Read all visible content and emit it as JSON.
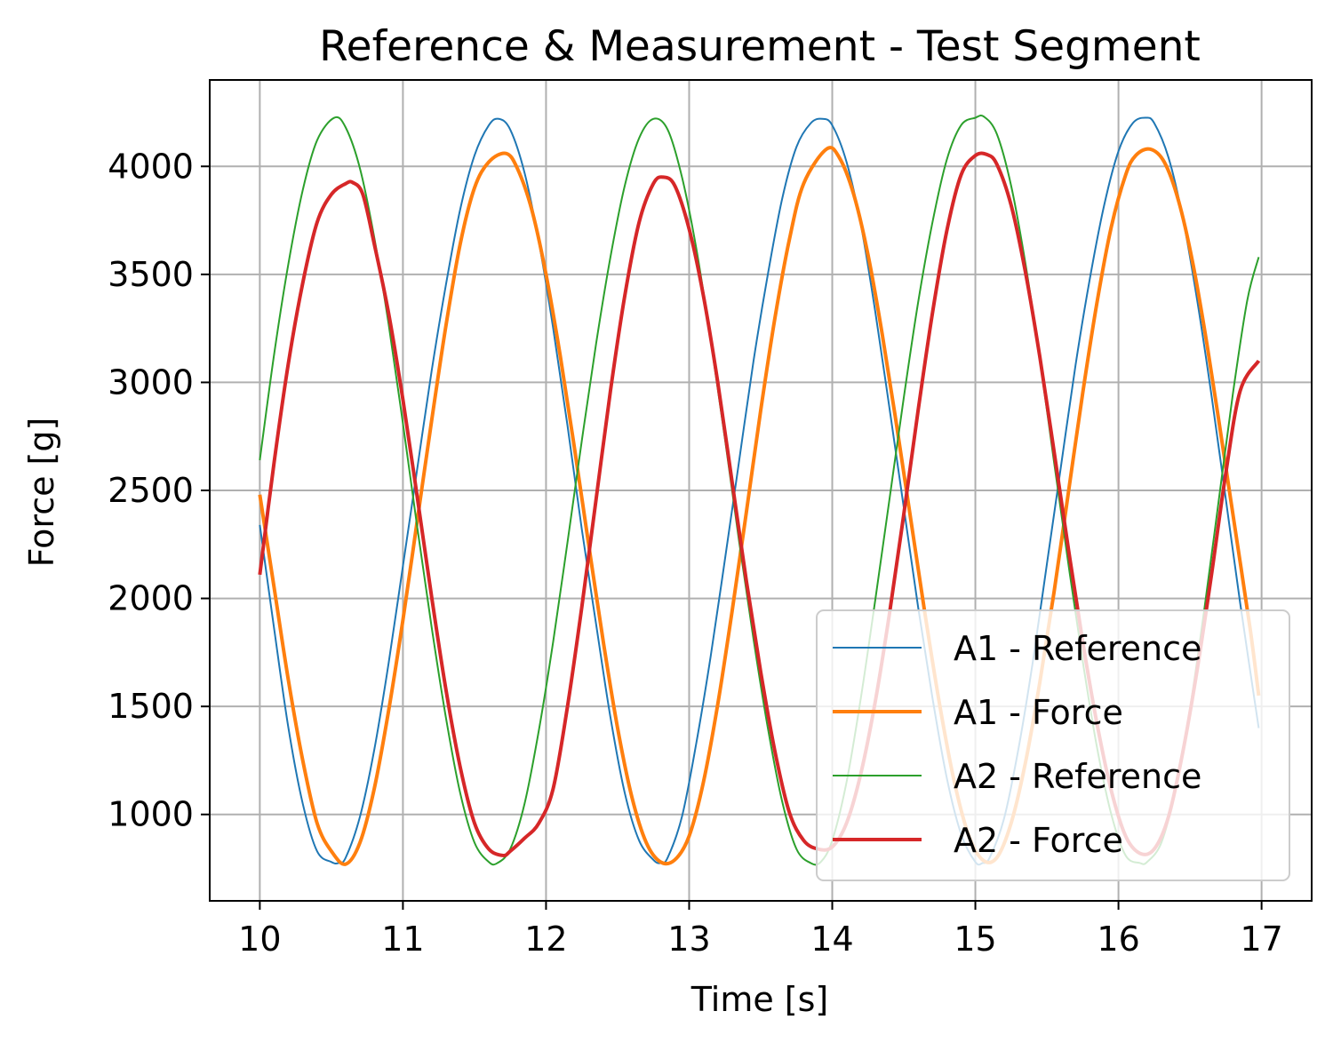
{
  "chart_data": {
    "type": "line",
    "title": "Reference & Measurement - Test Segment",
    "xlabel": "Time [s]",
    "ylabel": "Force [g]",
    "xlim": [
      9.65,
      17.35
    ],
    "ylim": [
      600,
      4400
    ],
    "xticks": [
      10,
      11,
      12,
      13,
      14,
      15,
      16,
      17
    ],
    "yticks": [
      1000,
      1500,
      2000,
      2500,
      3000,
      3500,
      4000
    ],
    "x_tick_labels": [
      "10",
      "11",
      "12",
      "13",
      "14",
      "15",
      "16",
      "17"
    ],
    "y_tick_labels": [
      "1000",
      "1500",
      "2000",
      "2500",
      "3000",
      "3500",
      "4000"
    ],
    "grid": true,
    "legend_position": "lower-right",
    "series": [
      {
        "name": "A1 - Reference",
        "color": "#1f77b4",
        "style": "thin",
        "x": [
          10.0,
          10.1,
          10.2,
          10.3,
          10.4,
          10.5,
          10.55,
          10.6,
          10.7,
          10.8,
          10.9,
          11.0,
          11.1,
          11.2,
          11.3,
          11.4,
          11.5,
          11.6,
          11.67,
          11.75,
          11.85,
          11.95,
          12.05,
          12.15,
          12.25,
          12.35,
          12.45,
          12.55,
          12.65,
          12.75,
          12.8,
          12.85,
          12.95,
          13.05,
          13.15,
          13.25,
          13.35,
          13.45,
          13.55,
          13.65,
          13.75,
          13.85,
          13.93,
          14.0,
          14.1,
          14.2,
          14.3,
          14.4,
          14.5,
          14.6,
          14.7,
          14.8,
          14.9,
          15.0,
          15.05,
          15.1,
          15.2,
          15.3,
          15.4,
          15.5,
          15.6,
          15.7,
          15.8,
          15.9,
          16.0,
          16.1,
          16.19,
          16.25,
          16.35,
          16.45,
          16.55,
          16.65,
          16.75,
          16.85,
          16.98
        ],
        "values": [
          2340,
          1860,
          1400,
          1050,
          830,
          780,
          775,
          800,
          990,
          1300,
          1700,
          2150,
          2600,
          3050,
          3450,
          3800,
          4050,
          4190,
          4220,
          4170,
          3970,
          3650,
          3250,
          2800,
          2320,
          1880,
          1450,
          1100,
          880,
          790,
          775,
          800,
          990,
          1330,
          1730,
          2180,
          2640,
          3100,
          3500,
          3850,
          4090,
          4200,
          4220,
          4190,
          4020,
          3730,
          3330,
          2880,
          2420,
          1960,
          1540,
          1170,
          910,
          780,
          775,
          800,
          980,
          1300,
          1700,
          2160,
          2620,
          3080,
          3480,
          3820,
          4070,
          4200,
          4225,
          4200,
          4040,
          3760,
          3380,
          2940,
          2460,
          1980,
          1400
        ]
      },
      {
        "name": "A1 - Force",
        "color": "#ff7f0e",
        "style": "thick",
        "x": [
          10.0,
          10.1,
          10.2,
          10.3,
          10.4,
          10.5,
          10.6,
          10.7,
          10.8,
          10.9,
          11.0,
          11.1,
          11.2,
          11.3,
          11.4,
          11.5,
          11.6,
          11.72,
          11.8,
          11.9,
          12.0,
          12.1,
          12.2,
          12.3,
          12.4,
          12.5,
          12.6,
          12.7,
          12.8,
          12.9,
          13.0,
          13.1,
          13.2,
          13.3,
          13.4,
          13.5,
          13.6,
          13.7,
          13.8,
          13.96,
          14.05,
          14.15,
          14.25,
          14.35,
          14.45,
          14.55,
          14.65,
          14.75,
          14.85,
          14.95,
          15.05,
          15.15,
          15.25,
          15.35,
          15.45,
          15.55,
          15.65,
          15.75,
          15.85,
          15.95,
          16.05,
          16.12,
          16.22,
          16.32,
          16.42,
          16.52,
          16.62,
          16.72,
          16.82,
          16.92,
          16.98
        ],
        "values": [
          2480,
          2050,
          1620,
          1250,
          960,
          830,
          770,
          870,
          1120,
          1480,
          1900,
          2360,
          2820,
          3260,
          3640,
          3900,
          4020,
          4060,
          3990,
          3800,
          3500,
          3120,
          2690,
          2240,
          1800,
          1400,
          1080,
          870,
          780,
          790,
          900,
          1150,
          1510,
          1940,
          2400,
          2870,
          3300,
          3660,
          3920,
          4080,
          4040,
          3870,
          3590,
          3220,
          2800,
          2360,
          1920,
          1510,
          1160,
          910,
          790,
          800,
          960,
          1240,
          1610,
          2030,
          2490,
          2950,
          3370,
          3720,
          3960,
          4050,
          4080,
          4020,
          3840,
          3550,
          3170,
          2740,
          2300,
          1860,
          1550
        ]
      },
      {
        "name": "A2 - Reference",
        "color": "#2ca02c",
        "style": "thin",
        "x": [
          10.0,
          10.1,
          10.2,
          10.3,
          10.4,
          10.52,
          10.6,
          10.7,
          10.8,
          10.9,
          11.0,
          11.1,
          11.2,
          11.3,
          11.4,
          11.5,
          11.6,
          11.66,
          11.75,
          11.85,
          11.95,
          12.05,
          12.15,
          12.25,
          12.35,
          12.45,
          12.55,
          12.65,
          12.75,
          12.85,
          12.95,
          13.05,
          13.15,
          13.25,
          13.35,
          13.45,
          13.55,
          13.65,
          13.75,
          13.85,
          13.92,
          14.0,
          14.1,
          14.2,
          14.3,
          14.4,
          14.5,
          14.6,
          14.7,
          14.8,
          14.9,
          15.0,
          15.06,
          15.15,
          15.25,
          15.35,
          15.45,
          15.55,
          15.65,
          15.75,
          15.85,
          15.95,
          16.05,
          16.15,
          16.2,
          16.3,
          16.4,
          16.5,
          16.6,
          16.7,
          16.8,
          16.9,
          16.98
        ],
        "values": [
          2640,
          3130,
          3550,
          3890,
          4120,
          4225,
          4180,
          3990,
          3670,
          3270,
          2810,
          2330,
          1870,
          1450,
          1100,
          870,
          780,
          775,
          840,
          1050,
          1390,
          1800,
          2260,
          2730,
          3180,
          3580,
          3910,
          4130,
          4220,
          4170,
          3950,
          3620,
          3200,
          2740,
          2260,
          1810,
          1400,
          1060,
          840,
          775,
          780,
          880,
          1150,
          1540,
          1990,
          2460,
          2930,
          3370,
          3740,
          4030,
          4190,
          4225,
          4230,
          4150,
          3910,
          3550,
          3110,
          2630,
          2160,
          1710,
          1310,
          1000,
          810,
          775,
          780,
          870,
          1120,
          1490,
          1950,
          2450,
          2950,
          3380,
          3580
        ]
      },
      {
        "name": "A2 - Force",
        "color": "#d62728",
        "style": "thick",
        "x": [
          10.0,
          10.1,
          10.2,
          10.3,
          10.4,
          10.5,
          10.6,
          10.65,
          10.72,
          10.8,
          10.9,
          11.0,
          11.1,
          11.2,
          11.3,
          11.4,
          11.5,
          11.6,
          11.7,
          11.75,
          11.85,
          11.95,
          12.05,
          12.15,
          12.25,
          12.35,
          12.45,
          12.55,
          12.65,
          12.75,
          12.82,
          12.9,
          13.0,
          13.1,
          13.2,
          13.3,
          13.4,
          13.5,
          13.6,
          13.7,
          13.8,
          13.9,
          14.0,
          14.1,
          14.2,
          14.3,
          14.4,
          14.5,
          14.6,
          14.7,
          14.8,
          14.9,
          15.0,
          15.08,
          15.15,
          15.25,
          15.35,
          15.45,
          15.55,
          15.65,
          15.75,
          15.85,
          15.95,
          16.05,
          16.15,
          16.25,
          16.35,
          16.45,
          16.55,
          16.65,
          16.75,
          16.85,
          16.98
        ],
        "values": [
          2110,
          2630,
          3090,
          3460,
          3740,
          3870,
          3920,
          3925,
          3870,
          3640,
          3320,
          2920,
          2470,
          2010,
          1580,
          1220,
          960,
          840,
          810,
          830,
          890,
          960,
          1120,
          1500,
          1960,
          2460,
          2960,
          3400,
          3740,
          3920,
          3950,
          3910,
          3710,
          3400,
          3000,
          2540,
          2080,
          1660,
          1290,
          1010,
          880,
          840,
          850,
          960,
          1190,
          1520,
          1930,
          2390,
          2870,
          3320,
          3700,
          3960,
          4050,
          4055,
          4010,
          3820,
          3510,
          3120,
          2680,
          2230,
          1800,
          1420,
          1110,
          900,
          820,
          840,
          990,
          1290,
          1670,
          2110,
          2580,
          2960,
          3100
        ]
      }
    ]
  }
}
